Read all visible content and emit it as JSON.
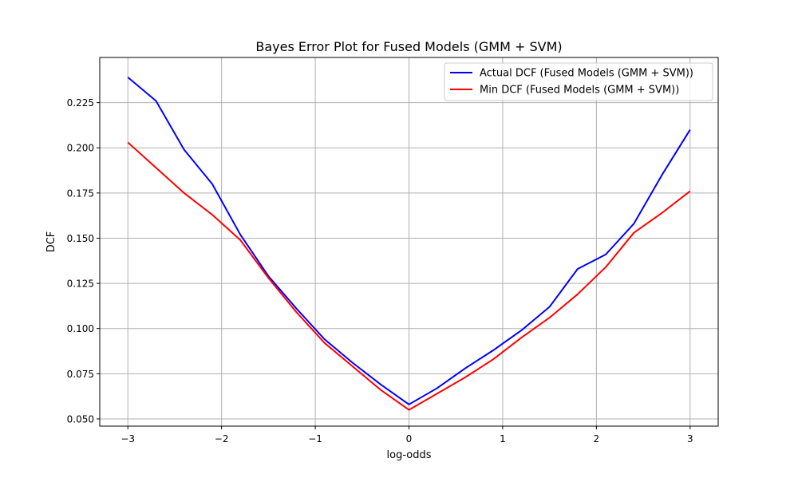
{
  "chart_data": {
    "type": "line",
    "title": "Bayes Error Plot for Fused Models (GMM + SVM)",
    "xlabel": "log-odds",
    "ylabel": "DCF",
    "xlim": [
      -3.3,
      3.3
    ],
    "ylim": [
      0.046,
      0.25
    ],
    "xticks": [
      -3,
      -2,
      -1,
      0,
      1,
      2,
      3
    ],
    "xtick_labels": [
      "−3",
      "−2",
      "−1",
      "0",
      "1",
      "2",
      "3"
    ],
    "yticks": [
      0.05,
      0.075,
      0.1,
      0.125,
      0.15,
      0.175,
      0.2,
      0.225
    ],
    "ytick_labels": [
      "0.050",
      "0.075",
      "0.100",
      "0.125",
      "0.150",
      "0.175",
      "0.200",
      "0.225"
    ],
    "grid": true,
    "legend_position": "top-right",
    "x": [
      -3.0,
      -2.7,
      -2.4,
      -2.1,
      -1.8,
      -1.5,
      -1.2,
      -0.9,
      -0.6,
      -0.3,
      0.0,
      0.3,
      0.6,
      0.9,
      1.2,
      1.5,
      1.8,
      2.1,
      2.4,
      2.7,
      3.0
    ],
    "series": [
      {
        "name": "Actual DCF (Fused Models (GMM + SVM))",
        "color": "#0000ff",
        "values": [
          0.239,
          0.226,
          0.199,
          0.18,
          0.152,
          0.129,
          0.111,
          0.094,
          0.081,
          0.069,
          0.058,
          0.067,
          0.078,
          0.088,
          0.099,
          0.112,
          0.133,
          0.141,
          0.158,
          0.185,
          0.21
        ]
      },
      {
        "name": "Min DCF (Fused Models (GMM + SVM))",
        "color": "#ff0000",
        "values": [
          0.203,
          0.189,
          0.175,
          0.163,
          0.149,
          0.128,
          0.109,
          0.092,
          0.079,
          0.066,
          0.055,
          0.064,
          0.073,
          0.083,
          0.095,
          0.106,
          0.119,
          0.134,
          0.153,
          0.164,
          0.176
        ]
      }
    ]
  }
}
